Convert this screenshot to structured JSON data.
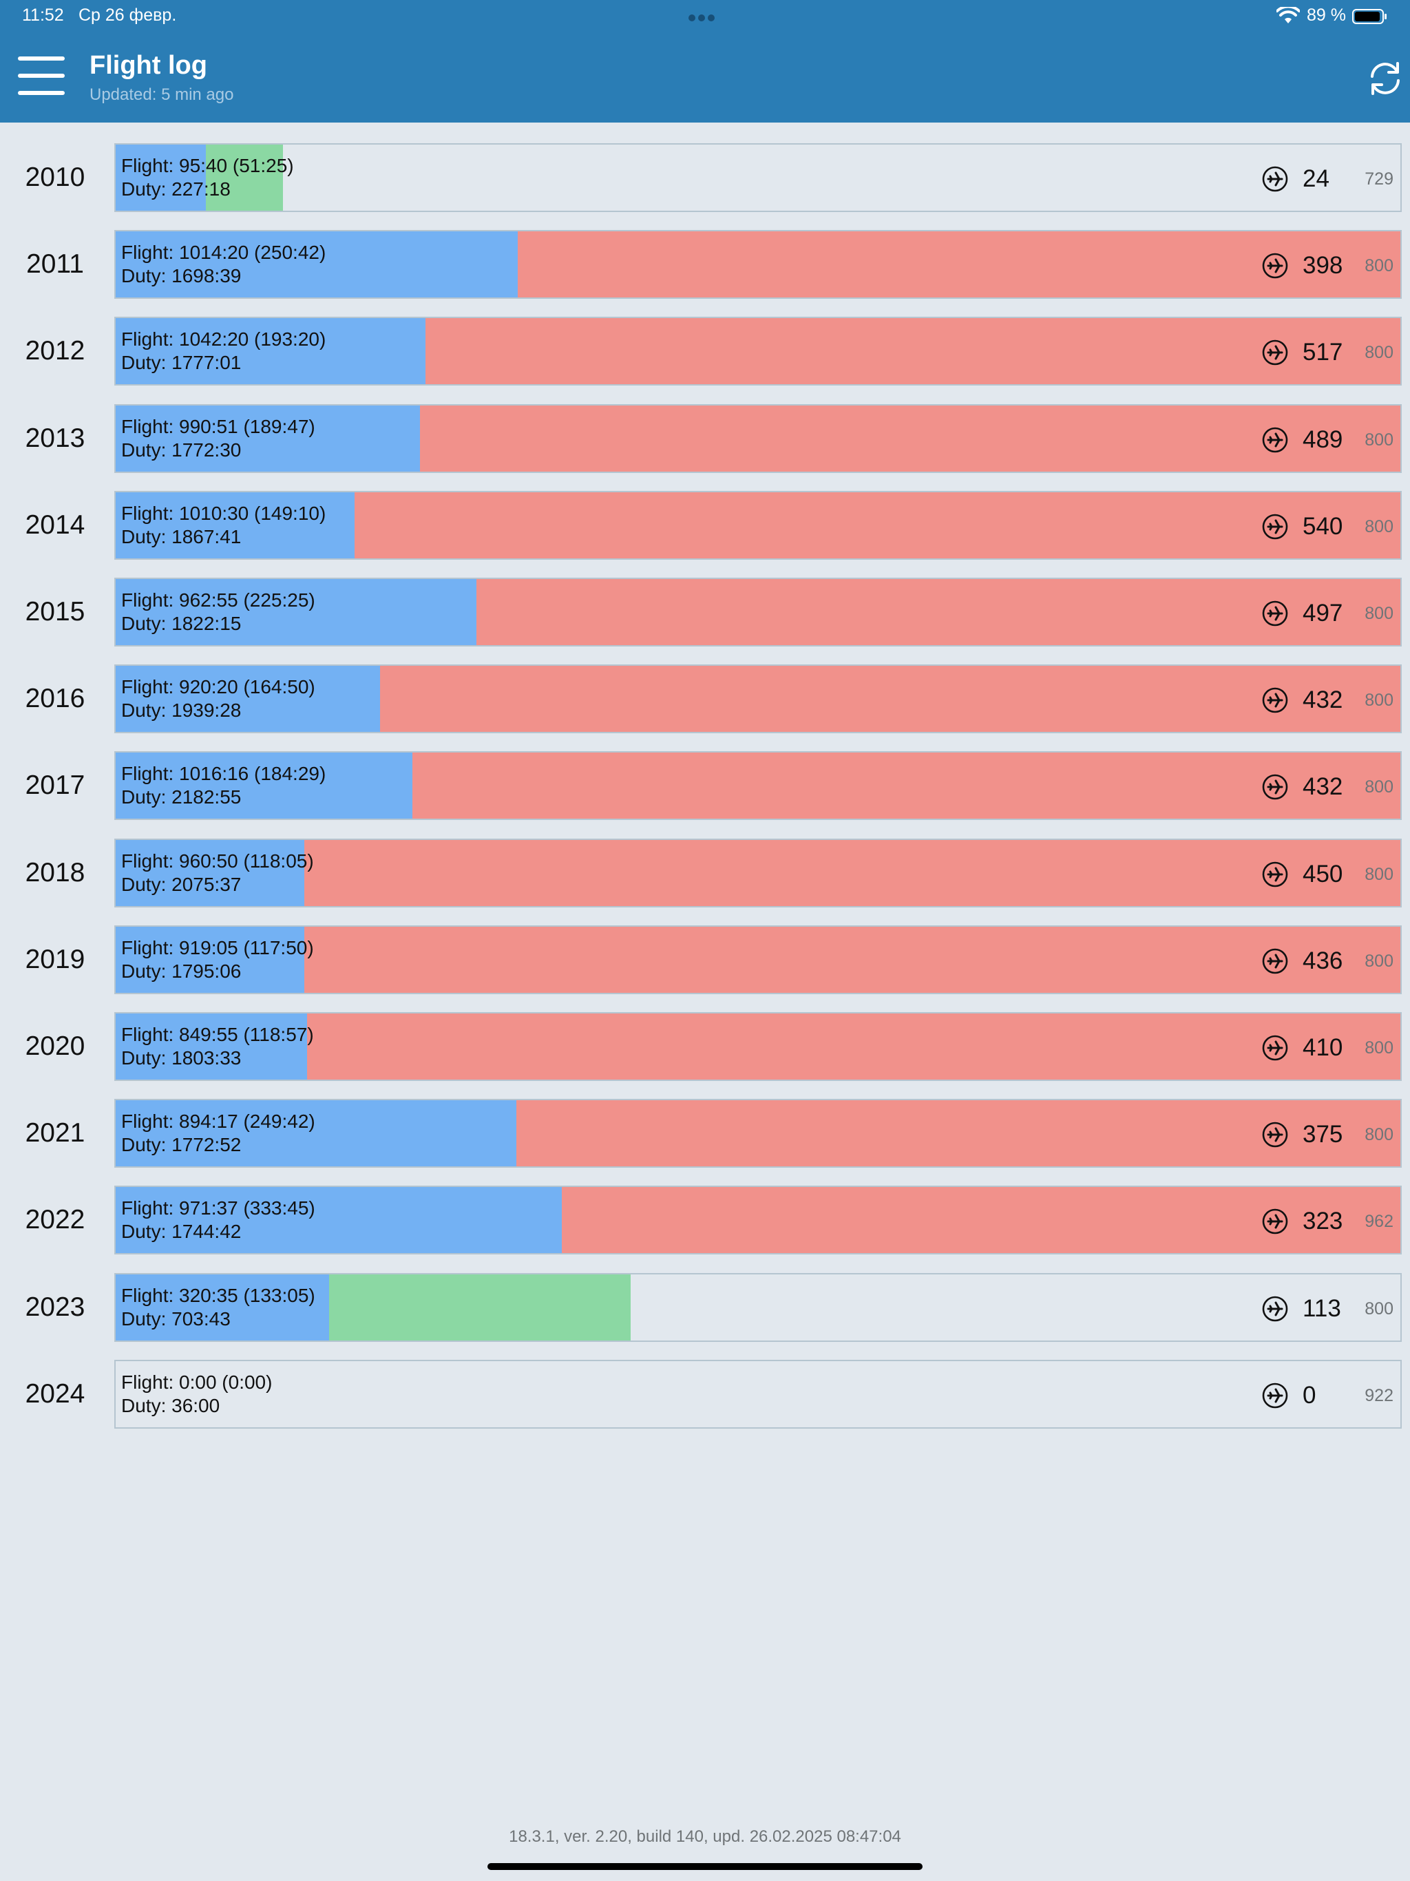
{
  "status_bar": {
    "time": "11:52",
    "date": "Ср 26 февр.",
    "battery": "89 %",
    "icons": [
      "more-dots-icon",
      "wifi-icon",
      "battery-icon"
    ]
  },
  "header": {
    "title": "Flight log",
    "subtitle": "Updated: 5 min ago",
    "icons": [
      "hamburger-menu-icon",
      "refresh-icon"
    ]
  },
  "colors": {
    "flight": "#73b1f3",
    "over": "#f1918b",
    "remaining": "#8bd8a3",
    "header": "#2a7db5",
    "background": "#e2e8ee"
  },
  "rows": [
    {
      "year": "2010",
      "flight": "Flight: 95:40 (51:25)",
      "duty": "Duty: 227:18",
      "flights": "24",
      "limit": "729",
      "flight_pct": 7.0,
      "remaining_pct": 6.0,
      "over": false
    },
    {
      "year": "2011",
      "flight": "Flight: 1014:20 (250:42)",
      "duty": "Duty: 1698:39",
      "flights": "398",
      "limit": "800",
      "flight_pct": 31.3,
      "remaining_pct": 0,
      "over": true
    },
    {
      "year": "2012",
      "flight": "Flight: 1042:20 (193:20)",
      "duty": "Duty: 1777:01",
      "flights": "517",
      "limit": "800",
      "flight_pct": 24.1,
      "remaining_pct": 0,
      "over": true
    },
    {
      "year": "2013",
      "flight": "Flight: 990:51 (189:47)",
      "duty": "Duty: 1772:30",
      "flights": "489",
      "limit": "800",
      "flight_pct": 23.7,
      "remaining_pct": 0,
      "over": true
    },
    {
      "year": "2014",
      "flight": "Flight: 1010:30 (149:10)",
      "duty": "Duty: 1867:41",
      "flights": "540",
      "limit": "800",
      "flight_pct": 18.6,
      "remaining_pct": 0,
      "over": true
    },
    {
      "year": "2015",
      "flight": "Flight: 962:55 (225:25)",
      "duty": "Duty: 1822:15",
      "flights": "497",
      "limit": "800",
      "flight_pct": 28.1,
      "remaining_pct": 0,
      "over": true
    },
    {
      "year": "2016",
      "flight": "Flight: 920:20 (164:50)",
      "duty": "Duty: 1939:28",
      "flights": "432",
      "limit": "800",
      "flight_pct": 20.6,
      "remaining_pct": 0,
      "over": true
    },
    {
      "year": "2017",
      "flight": "Flight: 1016:16 (184:29)",
      "duty": "Duty: 2182:55",
      "flights": "432",
      "limit": "800",
      "flight_pct": 23.1,
      "remaining_pct": 0,
      "over": true
    },
    {
      "year": "2018",
      "flight": "Flight: 960:50 (118:05)",
      "duty": "Duty: 2075:37",
      "flights": "450",
      "limit": "800",
      "flight_pct": 14.7,
      "remaining_pct": 0,
      "over": true
    },
    {
      "year": "2019",
      "flight": "Flight: 919:05 (117:50)",
      "duty": "Duty: 1795:06",
      "flights": "436",
      "limit": "800",
      "flight_pct": 14.7,
      "remaining_pct": 0,
      "over": true
    },
    {
      "year": "2020",
      "flight": "Flight: 849:55 (118:57)",
      "duty": "Duty: 1803:33",
      "flights": "410",
      "limit": "800",
      "flight_pct": 14.9,
      "remaining_pct": 0,
      "over": true
    },
    {
      "year": "2021",
      "flight": "Flight: 894:17 (249:42)",
      "duty": "Duty: 1772:52",
      "flights": "375",
      "limit": "800",
      "flight_pct": 31.2,
      "remaining_pct": 0,
      "over": true
    },
    {
      "year": "2022",
      "flight": "Flight: 971:37 (333:45)",
      "duty": "Duty: 1744:42",
      "flights": "323",
      "limit": "962",
      "flight_pct": 34.7,
      "remaining_pct": 0,
      "over": true
    },
    {
      "year": "2023",
      "flight": "Flight: 320:35 (133:05)",
      "duty": "Duty: 703:43",
      "flights": "113",
      "limit": "800",
      "flight_pct": 16.6,
      "remaining_pct": 23.5,
      "over": false
    },
    {
      "year": "2024",
      "flight": "Flight: 0:00 (0:00)",
      "duty": "Duty: 36:00",
      "flights": "0",
      "limit": "922",
      "flight_pct": 0,
      "remaining_pct": 0,
      "over": false
    }
  ],
  "footer": "18.3.1, ver. 2.20, build 140, upd. 26.02.2025 08:47:04"
}
